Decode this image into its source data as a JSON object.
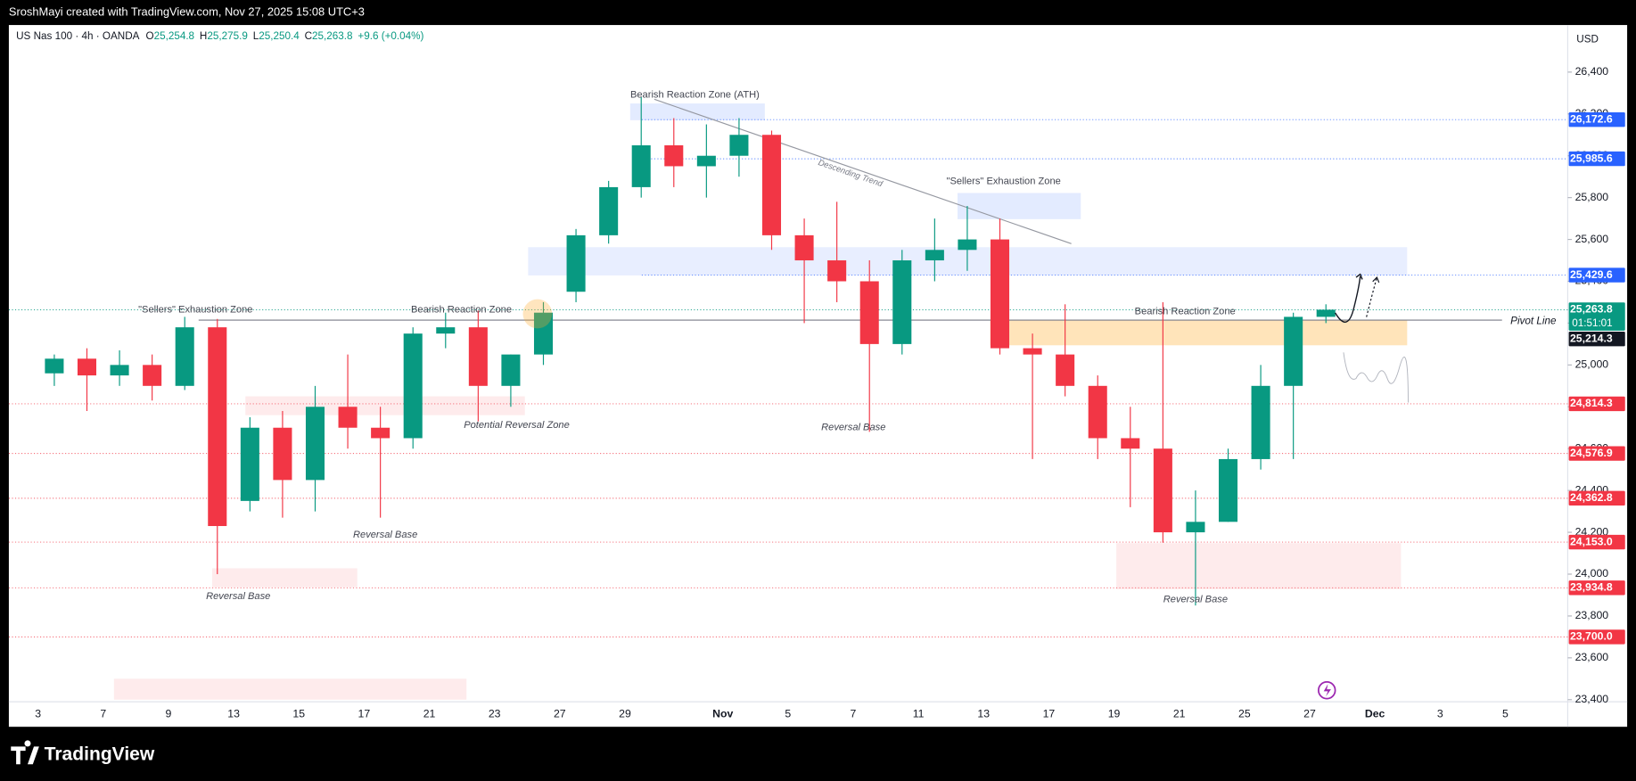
{
  "header": {
    "title": "SroshMayi created with TradingView.com, Nov 27, 2025 15:08 UTC+3"
  },
  "footer": {
    "brand": "TradingView"
  },
  "chart_data": {
    "type": "candlestick",
    "symbol": "US Nas 100 · 4h · OANDA",
    "legend": [
      {
        "key": "O",
        "value": "25,254.8"
      },
      {
        "key": "H",
        "value": "25,275.9"
      },
      {
        "key": "L",
        "value": "25,250.4"
      },
      {
        "key": "C",
        "value": "25,263.8"
      }
    ],
    "change": "+9.6 (+0.04%)",
    "currency": "USD",
    "categories": [
      "3",
      null,
      "7",
      null,
      "9",
      null,
      "13",
      null,
      "15",
      null,
      "17",
      null,
      "21",
      null,
      "23",
      null,
      "27",
      null,
      "29",
      null,
      null,
      "Nov",
      null,
      "5",
      null,
      "7",
      null,
      "11",
      null,
      "13",
      null,
      "17",
      null,
      "19",
      null,
      "21",
      null,
      "25",
      null,
      "27",
      null,
      "Dec",
      null,
      "3",
      null,
      "5"
    ],
    "open": [
      24960,
      25030,
      24950,
      25000,
      24900,
      25180,
      24350,
      24700,
      24450,
      24800,
      24700,
      24650,
      25150,
      25180,
      24900,
      25050,
      25350,
      25620,
      25850,
      26050,
      25950,
      26000,
      26100,
      25620,
      25500,
      25400,
      25100,
      25500,
      25550,
      25600,
      25080,
      25050,
      24900,
      24650,
      24600,
      24200,
      24250,
      24550,
      24900,
      25230,
      null,
      null,
      null,
      null,
      null,
      null
    ],
    "high": [
      25050,
      25080,
      25070,
      25050,
      25230,
      25220,
      24750,
      24780,
      24900,
      25050,
      24800,
      25180,
      25250,
      25260,
      25050,
      25300,
      25650,
      25880,
      26280,
      26180,
      26150,
      26180,
      26120,
      25700,
      25780,
      25500,
      25550,
      25700,
      25760,
      25700,
      25150,
      25290,
      24950,
      24800,
      25300,
      24400,
      24600,
      25000,
      25250,
      25290,
      null,
      null,
      null,
      null,
      null,
      null
    ],
    "low": [
      24900,
      24780,
      24900,
      24830,
      24880,
      24000,
      24300,
      24270,
      24300,
      24600,
      24270,
      24600,
      25080,
      24730,
      24800,
      25000,
      25300,
      25580,
      25800,
      25850,
      25800,
      25900,
      25550,
      25200,
      25300,
      24680,
      25050,
      25400,
      25450,
      25050,
      24550,
      24850,
      24550,
      24320,
      24150,
      23850,
      24250,
      24500,
      24550,
      25200,
      null,
      null,
      null,
      null,
      null,
      null
    ],
    "close": [
      25030,
      24950,
      25000,
      24900,
      25180,
      24230,
      24700,
      24450,
      24800,
      24700,
      24650,
      25150,
      25180,
      24900,
      25050,
      25250,
      25620,
      25850,
      26050,
      25950,
      26000,
      26100,
      25620,
      25500,
      25400,
      25100,
      25500,
      25550,
      25600,
      25080,
      25050,
      24900,
      24650,
      24600,
      24200,
      24250,
      24550,
      24900,
      25230,
      25264,
      null,
      null,
      null,
      null,
      null,
      null
    ],
    "up_color": "#089981",
    "down_color": "#f23645",
    "ylim": [
      23390,
      26625
    ],
    "yticks": [
      {
        "value": 23400,
        "label": "23,400"
      },
      {
        "value": 23600,
        "label": "23,600"
      },
      {
        "value": 23800,
        "label": "23,800"
      },
      {
        "value": 24000,
        "label": "24,000"
      },
      {
        "value": 24200,
        "label": "24,200"
      },
      {
        "value": 24400,
        "label": "24,400"
      },
      {
        "value": 24600,
        "label": "24,600"
      },
      {
        "value": 24800,
        "label": "24,800"
      },
      {
        "value": 25000,
        "label": "25,000"
      },
      {
        "value": 25200,
        "label": "25,200"
      },
      {
        "value": 25400,
        "label": "25,400"
      },
      {
        "value": 25600,
        "label": "25,600"
      },
      {
        "value": 25800,
        "label": "25,800"
      },
      {
        "value": 26000,
        "label": "26,000"
      },
      {
        "value": 26200,
        "label": "26,200"
      },
      {
        "value": 26400,
        "label": "26,400"
      }
    ],
    "grid": false,
    "price_lines": [
      {
        "value": 26172.6,
        "label": "26,172.6",
        "color": "#2962ff"
      },
      {
        "value": 25985.6,
        "label": "25,985.6",
        "color": "#2962ff"
      },
      {
        "value": 25429.6,
        "label": "25,429.6",
        "color": "#2962ff"
      },
      {
        "value": 24814.3,
        "label": "24,814.3",
        "color": "#f23645"
      },
      {
        "value": 24576.9,
        "label": "24,576.9",
        "color": "#f23645"
      },
      {
        "value": 24362.8,
        "label": "24,362.8",
        "color": "#f23645"
      },
      {
        "value": 24153.0,
        "label": "24,153.0",
        "color": "#f23645"
      },
      {
        "value": 23934.8,
        "label": "23,934.8",
        "color": "#f23645"
      },
      {
        "value": 23700.0,
        "label": "23,700.0",
        "color": "#f23645"
      }
    ],
    "current": {
      "value": 25263.8,
      "label": "25,263.8",
      "countdown": "01:51:01",
      "color": "#089981"
    },
    "pivot": {
      "value": 25214.3,
      "label": "25,214.3",
      "text": "Pivot Line",
      "color": "#131722"
    },
    "zones": [
      {
        "top": 26250,
        "bottom": 26170,
        "from": 18.16,
        "to": 22.29,
        "color": "rgba(41,98,255,0.13)"
      },
      {
        "top": 25822,
        "bottom": 25697,
        "from": 28.2,
        "to": 31.98,
        "color": "rgba(41,98,255,0.13)"
      },
      {
        "top": 25563,
        "bottom": 25428,
        "from": 15.03,
        "to": 41.99,
        "color": "rgba(41,98,255,0.11)"
      },
      {
        "top": 25214,
        "bottom": 25094,
        "from": 29.2,
        "to": 41.99,
        "color": "rgba(255,170,40,0.32)"
      },
      {
        "top": 24850,
        "bottom": 24760,
        "from": 6.36,
        "to": 14.93,
        "color": "rgba(242,54,69,0.1)"
      },
      {
        "top": 24028,
        "bottom": 23938,
        "from": 5.34,
        "to": 9.79,
        "color": "rgba(242,54,69,0.1)"
      },
      {
        "top": 24148,
        "bottom": 23928,
        "from": 33.07,
        "to": 41.8,
        "color": "rgba(242,54,69,0.1)"
      },
      {
        "top": 23500,
        "bottom": 23400,
        "from": 2.33,
        "to": 13.14,
        "color": "rgba(242,54,69,0.1)"
      }
    ],
    "trend_line": {
      "label": "Descending Trend",
      "start": [
        18.9,
        26270
      ],
      "end": [
        31.69,
        25580
      ]
    },
    "annotations": [
      "Bearish Reaction Zone (ATH)",
      "\"Sellers\" Exhaustion Zone",
      "\"Sellers\" Exhaustion Zone",
      "Bearish Reaction Zone",
      "Potential Reversal Zone",
      "Reversal Base",
      "Bearish Reaction Zone",
      "Reversal Base",
      "Reversal Base",
      "Reversal Base"
    ]
  }
}
